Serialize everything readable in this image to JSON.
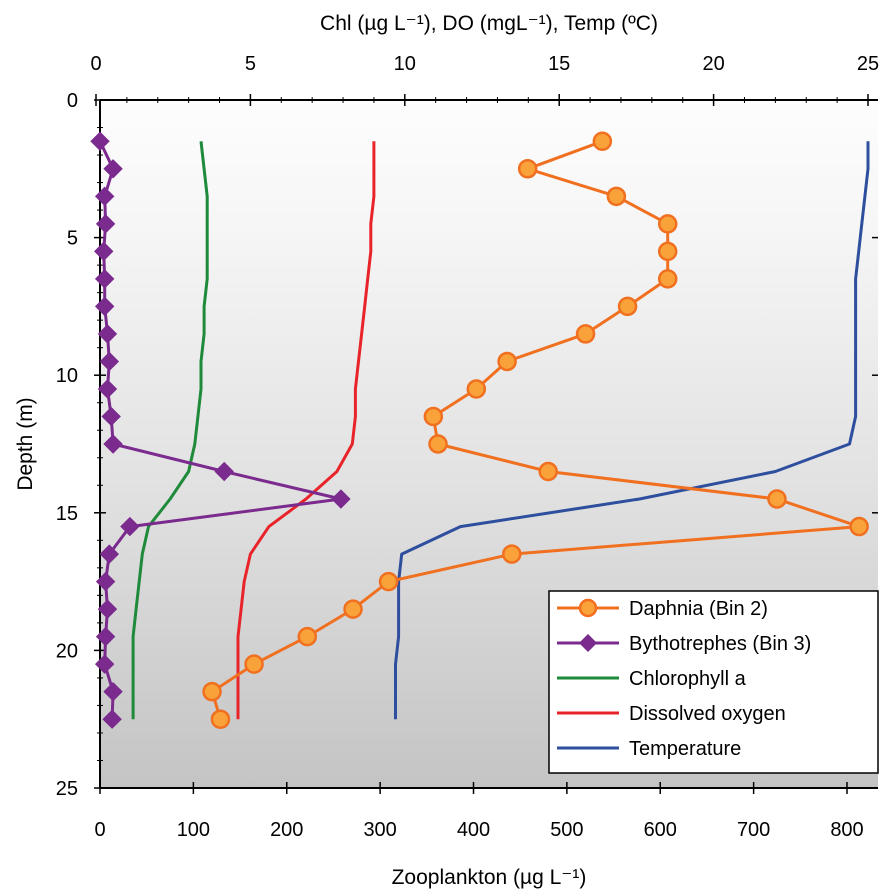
{
  "chart_data": {
    "type": "line",
    "top_axis": {
      "label": "Chl (µg L⁻¹), DO (mgL⁻¹), Temp (ºC)",
      "range": [
        0,
        25
      ],
      "ticks": [
        "0",
        "5",
        "10",
        "15",
        "20",
        "25"
      ]
    },
    "bottom_axis": {
      "label": "Zooplankton (µg L⁻¹)",
      "range": [
        0,
        800
      ],
      "ticks": [
        "0",
        "100",
        "200",
        "300",
        "400",
        "500",
        "600",
        "700",
        "800"
      ]
    },
    "y_axis": {
      "label": "Depth (m)",
      "range": [
        0,
        25
      ],
      "inverted": true,
      "ticks": [
        "0",
        "5",
        "10",
        "15",
        "20",
        "25"
      ]
    },
    "grid": false,
    "legend_position": "bottom-right",
    "series": [
      {
        "name": "Daphnia (Bin 2)",
        "axis": "bottom",
        "color": "#F07020",
        "marker": "circle",
        "x": [
          538,
          458,
          553,
          608,
          608,
          608,
          565,
          520,
          436,
          403,
          357,
          362,
          480,
          725,
          813,
          441,
          309,
          271,
          222,
          165,
          120,
          129
        ],
        "y": [
          1.5,
          2.5,
          3.5,
          4.5,
          5.5,
          6.5,
          7.5,
          8.5,
          9.5,
          10.5,
          11.5,
          12.5,
          13.5,
          14.5,
          15.5,
          16.5,
          17.5,
          18.5,
          19.5,
          20.5,
          21.5,
          22.5
        ]
      },
      {
        "name": "Bythotrephes (Bin 3)",
        "axis": "bottom",
        "color": "#7B2A8E",
        "marker": "diamond",
        "x": [
          0,
          14,
          5,
          6,
          4,
          5,
          5,
          8,
          10,
          8,
          12,
          14,
          133,
          258,
          32,
          10,
          6,
          8,
          6,
          5,
          14,
          13
        ],
        "y": [
          1.5,
          2.5,
          3.5,
          4.5,
          5.5,
          6.5,
          7.5,
          8.5,
          9.5,
          10.5,
          11.5,
          12.5,
          13.5,
          14.5,
          15.5,
          16.5,
          17.5,
          18.5,
          19.5,
          20.5,
          21.5,
          22.5
        ]
      },
      {
        "name": "Chlorophyll a",
        "axis": "top",
        "color": "#1E8A3A",
        "marker": "none",
        "x": [
          3.4,
          3.5,
          3.6,
          3.6,
          3.6,
          3.6,
          3.5,
          3.5,
          3.4,
          3.4,
          3.3,
          3.2,
          3.0,
          2.4,
          1.7,
          1.5,
          1.4,
          1.3,
          1.2,
          1.2,
          1.2,
          1.2
        ],
        "y": [
          1.5,
          2.5,
          3.5,
          4.5,
          5.5,
          6.5,
          7.5,
          8.5,
          9.5,
          10.5,
          11.5,
          12.5,
          13.5,
          14.5,
          15.5,
          16.5,
          17.5,
          18.5,
          19.5,
          20.5,
          21.5,
          22.5
        ]
      },
      {
        "name": "Dissolved oxygen",
        "axis": "top",
        "color": "#E8242A",
        "marker": "none",
        "x": [
          9.0,
          9.0,
          9.0,
          8.9,
          8.9,
          8.8,
          8.7,
          8.6,
          8.5,
          8.4,
          8.4,
          8.3,
          7.8,
          6.8,
          5.6,
          5.0,
          4.8,
          4.7,
          4.6,
          4.6,
          4.6,
          4.6
        ],
        "y": [
          1.5,
          2.5,
          3.5,
          4.5,
          5.5,
          6.5,
          7.5,
          8.5,
          9.5,
          10.5,
          11.5,
          12.5,
          13.5,
          14.5,
          15.5,
          16.5,
          17.5,
          18.5,
          19.5,
          20.5,
          21.5,
          22.5
        ]
      },
      {
        "name": "Temperature",
        "axis": "top",
        "color": "#2E4E9E",
        "marker": "none",
        "x": [
          25.0,
          25.0,
          24.9,
          24.8,
          24.7,
          24.6,
          24.6,
          24.6,
          24.6,
          24.6,
          24.6,
          24.4,
          22.0,
          17.6,
          11.8,
          9.9,
          9.8,
          9.8,
          9.8,
          9.7,
          9.7,
          9.7
        ],
        "y": [
          1.5,
          2.5,
          3.5,
          4.5,
          5.5,
          6.5,
          7.5,
          8.5,
          9.5,
          10.5,
          11.5,
          12.5,
          13.5,
          14.5,
          15.5,
          16.5,
          17.5,
          18.5,
          19.5,
          20.5,
          21.5,
          22.5
        ]
      }
    ]
  }
}
